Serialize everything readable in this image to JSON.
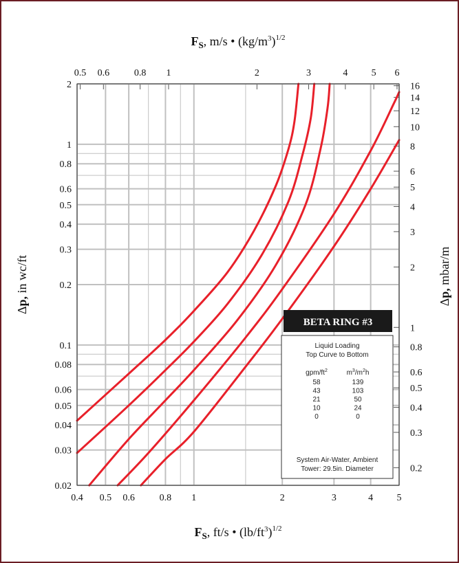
{
  "chart_data": {
    "type": "line",
    "x_axis": {
      "scale": "log",
      "label_prefix": "F",
      "label_sub": "S",
      "label_suffix": ", ft/s • (lb/ft",
      "label_sup": "3",
      "label_end": ")",
      "label_exp": "1/2",
      "range": [
        0.4,
        5
      ],
      "ticks": [
        0.4,
        0.5,
        0.6,
        0.8,
        1,
        2,
        3,
        4,
        5
      ],
      "tick_labels": [
        "0.4",
        "0.5",
        "0.6",
        "0.8",
        "1",
        "2",
        "3",
        "4",
        "5"
      ]
    },
    "x_axis_top": {
      "scale": "log",
      "label_prefix": "F",
      "label_sub": "S",
      "label_suffix": ", m/s • (kg/m",
      "label_sup": "3",
      "label_end": ")",
      "label_exp": "1/2",
      "range": [
        0.4879,
        6.099
      ],
      "ticks": [
        0.5,
        0.6,
        0.8,
        1,
        2,
        3,
        4,
        5,
        6
      ],
      "tick_labels": [
        "0.5",
        "0.6",
        "0.8",
        "1",
        "2",
        "3",
        "4",
        "5",
        "6"
      ]
    },
    "y_axis": {
      "scale": "log",
      "label_prefix": "Δ",
      "label_bold": "p,",
      "label_suffix": " in wc/ft",
      "range": [
        0.02,
        2
      ],
      "ticks": [
        0.02,
        0.03,
        0.04,
        0.05,
        0.06,
        0.08,
        0.1,
        0.2,
        0.3,
        0.4,
        0.5,
        0.6,
        0.8,
        1,
        2
      ],
      "tick_labels": [
        "0.02",
        "0.03",
        "0.04",
        "0.05",
        "0.06",
        "0.08",
        "0.1",
        "0.2",
        "0.3",
        "0.4",
        "0.5",
        "0.6",
        "0.8",
        "1",
        "2"
      ]
    },
    "y_axis_right": {
      "scale": "log",
      "label_prefix": "Δ",
      "label_bold": "p,",
      "label_suffix": " mbar/m",
      "range": [
        0.1634,
        16.34
      ],
      "ticks": [
        0.2,
        0.3,
        0.4,
        0.5,
        0.6,
        0.8,
        1,
        2,
        3,
        4,
        5,
        6,
        8,
        10,
        12,
        14,
        16
      ],
      "tick_labels": [
        "0.2",
        "0.3",
        "0.4",
        "0.5",
        "0.6",
        "0.8",
        "1",
        "2",
        "3",
        "4",
        "5",
        "6",
        "8",
        "10",
        "12",
        "14",
        "16"
      ]
    },
    "grid": true,
    "series": [
      {
        "values": [
          [
            0.4,
            0.042
          ],
          [
            0.6,
            0.072
          ],
          [
            0.8,
            0.106
          ],
          [
            1.0,
            0.148
          ],
          [
            1.3,
            0.23
          ],
          [
            1.6,
            0.37
          ],
          [
            1.9,
            0.62
          ],
          [
            2.1,
            0.95
          ],
          [
            2.2,
            1.3
          ],
          [
            2.27,
            2.0
          ]
        ]
      },
      {
        "values": [
          [
            0.4,
            0.029
          ],
          [
            0.6,
            0.05
          ],
          [
            0.8,
            0.075
          ],
          [
            1.0,
            0.104
          ],
          [
            1.3,
            0.16
          ],
          [
            1.7,
            0.28
          ],
          [
            2.1,
            0.52
          ],
          [
            2.35,
            0.9
          ],
          [
            2.5,
            1.35
          ],
          [
            2.57,
            2.0
          ]
        ]
      },
      {
        "values": [
          [
            0.44,
            0.02
          ],
          [
            0.6,
            0.034
          ],
          [
            0.8,
            0.053
          ],
          [
            1.0,
            0.075
          ],
          [
            1.4,
            0.132
          ],
          [
            1.9,
            0.25
          ],
          [
            2.4,
            0.5
          ],
          [
            2.7,
            0.95
          ],
          [
            2.85,
            1.5
          ],
          [
            2.9,
            2.0
          ]
        ]
      },
      {
        "values": [
          [
            0.55,
            0.02
          ],
          [
            0.7,
            0.029
          ],
          [
            1.0,
            0.053
          ],
          [
            1.5,
            0.109
          ],
          [
            2.0,
            0.19
          ],
          [
            3.0,
            0.45
          ],
          [
            4.0,
            0.93
          ],
          [
            4.8,
            1.6
          ],
          [
            5.0,
            1.82
          ]
        ]
      },
      {
        "values": [
          [
            0.66,
            0.02
          ],
          [
            0.8,
            0.027
          ],
          [
            1.0,
            0.037
          ],
          [
            1.5,
            0.078
          ],
          [
            2.0,
            0.135
          ],
          [
            3.0,
            0.31
          ],
          [
            4.0,
            0.6
          ],
          [
            5.0,
            1.05
          ]
        ]
      }
    ],
    "line_color": "#e8202a",
    "grid_color": "#c0c0c0",
    "badge": {
      "text": "BETA RING #3",
      "bg": "#1a1a1a"
    },
    "legend": {
      "title1": "Liquid Loading",
      "title2": "Top Curve to Bottom",
      "col1_header": "gpm/ft",
      "col1_header_sup": "2",
      "col2_header": "m",
      "col2_header_sup": "3",
      "col2_header_mid": "/m",
      "col2_header_sup2": "2",
      "col2_header_end": "h",
      "rows": [
        [
          "58",
          "139"
        ],
        [
          "43",
          "103"
        ],
        [
          "21",
          "50"
        ],
        [
          "10",
          "24"
        ],
        [
          "0",
          "0"
        ]
      ],
      "footer1": "System Air-Water, Ambient",
      "footer2": "Tower: 29.5in. Diameter"
    }
  },
  "colors": {
    "frame": "#6b1d24",
    "curve": "#e8202a",
    "grid": "#c0c0c0",
    "badge_bg": "#1a1a1a"
  }
}
